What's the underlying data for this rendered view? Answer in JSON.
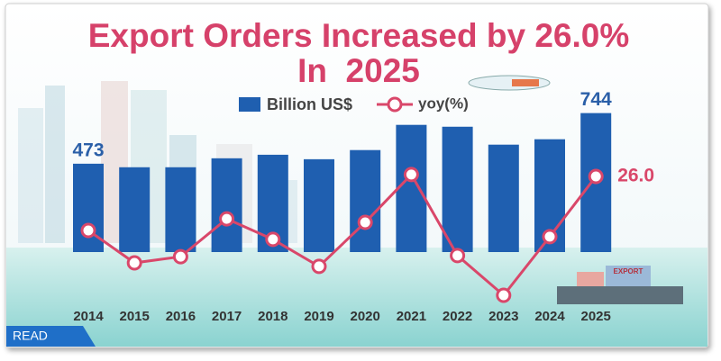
{
  "chart_data": {
    "type": "bar-line",
    "title": [
      "Export Orders Increased by 26.0%",
      "In  2025"
    ],
    "categories": [
      "2014",
      "2015",
      "2016",
      "2017",
      "2018",
      "2019",
      "2020",
      "2021",
      "2022",
      "2023",
      "2024",
      "2025"
    ],
    "series": [
      {
        "name": "Billion US$",
        "type": "bar",
        "color": "#1f5fb0",
        "values": [
          473,
          454,
          454,
          502,
          521,
          497,
          546,
          681,
          671,
          575,
          604,
          744
        ],
        "label_indices": [
          0,
          11
        ]
      },
      {
        "name": "yoy(%)",
        "type": "line",
        "axis": "y2",
        "color": "#d9476a",
        "values": [
          6,
          -6,
          -3.7,
          10.3,
          2.7,
          -7.3,
          9,
          26.7,
          -3.3,
          -18,
          3.7,
          26
        ],
        "value_labels": [
          null,
          null,
          null,
          null,
          null,
          null,
          null,
          null,
          null,
          null,
          null,
          "26.0"
        ]
      }
    ],
    "ylim": [
      0,
      800
    ],
    "y2lim": [
      -20,
      40
    ],
    "grid": false
  },
  "read_button": "READ"
}
